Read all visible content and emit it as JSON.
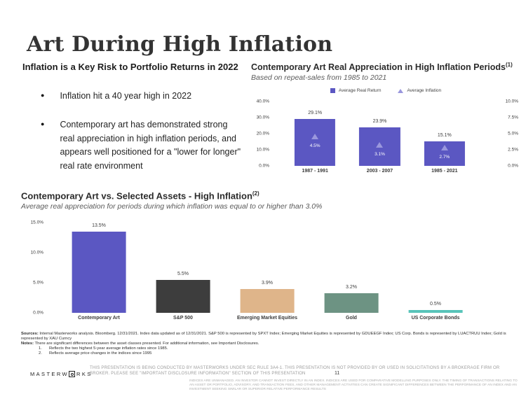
{
  "slide": {
    "title": "Art During High Inflation",
    "page_number": "11"
  },
  "left_panel": {
    "heading": "Inflation is a Key Risk to Portfolio Returns in 2022",
    "bullets": [
      "Inflation hit a 40 year high in 2022",
      "Contemporary art has demonstrated strong real appreciation in high inflation periods, and appears well positioned for a \"lower for longer\" real rate environment"
    ]
  },
  "chart_data": [
    {
      "type": "bar",
      "title": "Contemporary Art Real Appreciation in High Inflation Periods",
      "title_superscript": "(1)",
      "subtitle": "Based on repeat-sales from 1985 to 2021",
      "categories": [
        "1987 - 1991",
        "2003 - 2007",
        "1985 - 2021"
      ],
      "series": [
        {
          "name": "Average Real Return",
          "values": [
            29.1,
            23.9,
            15.1
          ],
          "labels": [
            "29.1%",
            "23.9%",
            "15.1%"
          ],
          "color": "#5b57c2",
          "marker": "bar",
          "axis": "left"
        },
        {
          "name": "Average Inflation",
          "values": [
            4.5,
            3.1,
            2.7
          ],
          "labels": [
            "4.5%",
            "3.1%",
            "2.7%"
          ],
          "color": "#9a97dd",
          "marker": "triangle",
          "axis": "right"
        }
      ],
      "left_axis": {
        "ticks": [
          "40.0%",
          "30.0%",
          "20.0%",
          "10.0%",
          "0.0%"
        ],
        "min": 0,
        "max": 40
      },
      "right_axis": {
        "ticks": [
          "10.0%",
          "7.5%",
          "5.0%",
          "2.5%",
          "0.0%"
        ],
        "min": 0,
        "max": 10
      },
      "legend_position": "top",
      "grid": false
    },
    {
      "type": "bar",
      "title": "Contemporary Art vs. Selected Assets - High Inflation",
      "title_superscript": "(2)",
      "subtitle": "Average real appreciation for periods during which inflation was equal to or higher than 3.0%",
      "categories": [
        "Contemporary Art",
        "S&P 500",
        "Emerging Market Equities",
        "Gold",
        "US Corporate Bonds"
      ],
      "values": [
        13.5,
        5.5,
        3.9,
        3.2,
        0.5
      ],
      "value_labels": [
        "13.5%",
        "5.5%",
        "3.9%",
        "3.2%",
        "0.5%"
      ],
      "bar_colors": [
        "#5b57c2",
        "#3d3d3d",
        "#dfb58a",
        "#6d9383",
        "#58c4b9"
      ],
      "y_axis": {
        "ticks": [
          "15.0%",
          "10.0%",
          "5.0%",
          "0.0%"
        ],
        "min": 0,
        "max": 15
      },
      "grid": false
    }
  ],
  "footer": {
    "sources_label": "Sources:",
    "sources_text": " Internal Masterworks analysis. Bloomberg. 12/31/2021. Index data updated as of 12/31/2021. S&P 500 is represented by SPXT Index; Emerging Market Equities is represented by GDUEEGF Index; US Corp. Bonds is represented by LUACTRUU Index; Gold is represented by XAU Curncy",
    "notes_label": "Notes:",
    "notes_text": " There are significant differences between the asset classes presented. For additional information, see Important Disclosures.",
    "notes_items": [
      {
        "num": "1.",
        "text": "Reflects the two highest 5-year average inflation rates since 1985."
      },
      {
        "num": "2.",
        "text": "Reflects average price changes in the indices since 1995"
      }
    ]
  },
  "branding": {
    "logo_part1": "MASTERW",
    "logo_part2": "RKS"
  },
  "disclaimer": {
    "main": "THIS PRESENTATION  IS BEING CONDUCTED BY MASTERWORKS UNDER SEC RULE 3A4-1. THIS PRESENTATION  IS NOT PROVIDED BY OR USED IN SOLICITATIONS BY A BROKERAGE FIRM OR BROKER. PLEASE SEE \"IMPORTANT DISCLOSURE INFORMATION\" SECTION OF THIS PRESENTATION",
    "fine_print": "INDICES ARE UNMANAGED. AN INVESTOR CANNOT INVEST DIRECTLY IN AN INDEX. INDICES ARE USED FOR COMPARATIVE MODELLING PURPOSES ONLY. THE TIMING OF TRANSACTIONS RELATING TO AN ASSET OR PORTFOLIO, ADVISORY, AND TRANSACTION FEES, AND OTHER MANAGEMENT ACTIVITIES CAN CREATE SIGNIFICANT DIFFERENCES BETWEEN THE PERFORMANCE OF AN INDEX AND AN INVESTMENT SEEKING SIMILAR OR SUPERIOR RELATIVE PERFORMANCE RESULTS"
  },
  "colors": {
    "accent_purple": "#5b57c2",
    "triangle_purple": "#9a97dd",
    "dark_bar": "#3d3d3d",
    "tan_bar": "#dfb58a",
    "green_bar": "#6d9383",
    "teal_bar": "#58c4b9"
  }
}
